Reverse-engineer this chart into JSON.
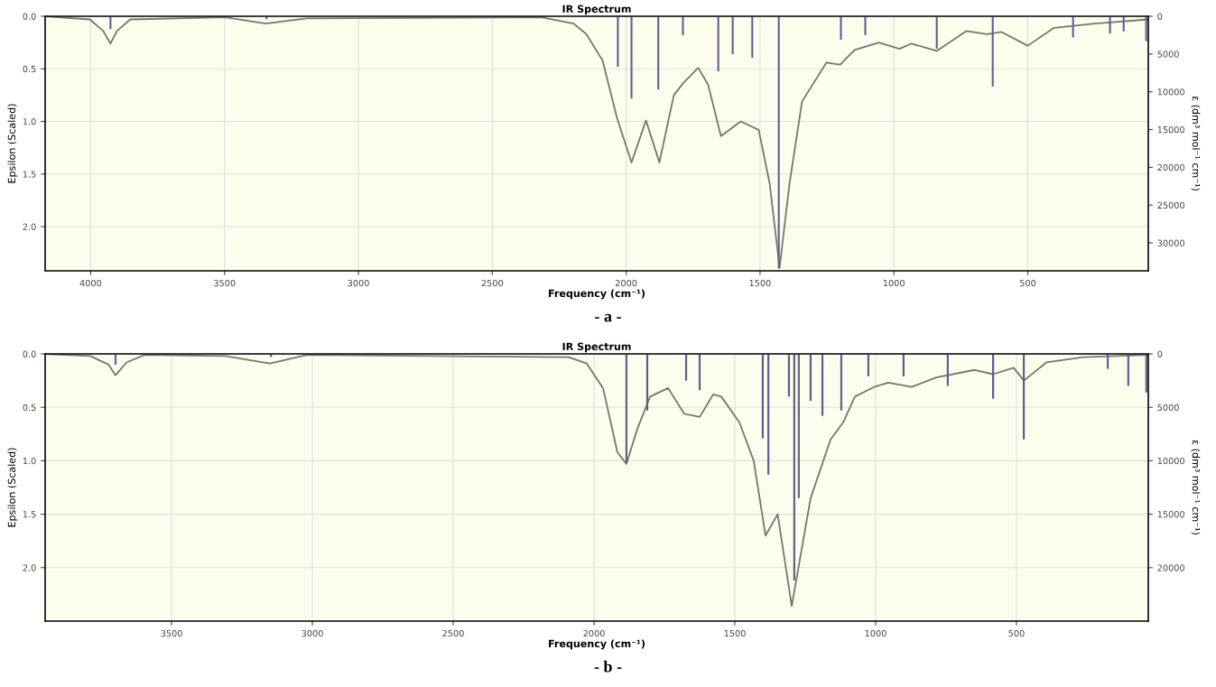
{
  "chart_data": [
    {
      "type": "line",
      "title": "IR Spectrum",
      "xlabel": "Frequency (cm⁻¹)",
      "ylabel": "Epsilon (Scaled)",
      "y2label": "ε (dm³ mol⁻¹ cm⁻¹)",
      "xlim": [
        4170,
        50
      ],
      "xticks": [
        4000,
        3500,
        3000,
        2500,
        2000,
        1500,
        1000,
        500
      ],
      "ylim": [
        2.42,
        0
      ],
      "yticks": [
        {
          "value": 0,
          "label": "0.0"
        },
        {
          "value": 0.5,
          "label": "0.5"
        },
        {
          "value": 1,
          "label": "1.0"
        },
        {
          "value": 1.5,
          "label": "1.5"
        },
        {
          "value": 2,
          "label": "2.0"
        }
      ],
      "y2lim": [
        33700,
        0
      ],
      "y2ticks": [
        0,
        5000,
        10000,
        15000,
        20000,
        25000,
        30000
      ],
      "grid": true,
      "annotations": [
        "- a -"
      ],
      "series": [
        {
          "color": "#77776a",
          "x": [
            4170,
            4003,
            3953,
            3926,
            3902,
            3852,
            3498,
            3346,
            3194,
            2317,
            2196,
            2149,
            2088,
            2034,
            1980,
            1926,
            1876,
            1822,
            1785,
            1731,
            1694,
            1646,
            1572,
            1505,
            1464,
            1427,
            1390,
            1343,
            1252,
            1201,
            1147,
            1056,
            979,
            935,
            840,
            729,
            652,
            598,
            500,
            402,
            250,
            51
          ],
          "values": [
            0.0,
            0.03,
            0.14,
            0.26,
            0.14,
            0.03,
            0.01,
            0.07,
            0.02,
            0.01,
            0.07,
            0.17,
            0.42,
            0.97,
            1.39,
            0.99,
            1.39,
            0.75,
            0.63,
            0.49,
            0.65,
            1.14,
            1.0,
            1.08,
            1.59,
            2.39,
            1.59,
            0.81,
            0.44,
            0.46,
            0.32,
            0.25,
            0.31,
            0.26,
            0.33,
            0.14,
            0.17,
            0.15,
            0.28,
            0.11,
            0.07,
            0.03
          ]
        },
        {
          "type": "bar",
          "axis": "y2",
          "color": "#5c6088",
          "x": [
            3926,
            3343,
            2031,
            1980,
            1880,
            1788,
            1656,
            1602,
            1529,
            1430,
            1198,
            1107,
            840,
            631,
            331,
            193,
            142,
            58
          ],
          "values": [
            1700,
            400,
            6700,
            10900,
            9700,
            2500,
            7300,
            5000,
            5500,
            33400,
            3100,
            2500,
            4300,
            9300,
            2800,
            2300,
            2000,
            3300
          ]
        }
      ]
    },
    {
      "type": "line",
      "title": "IR Spectrum",
      "xlabel": "Frequency (cm⁻¹)",
      "ylabel": "Epsilon (Scaled)",
      "y2label": "ε (dm³ mol⁻¹ cm⁻¹)",
      "xlim": [
        3949,
        32
      ],
      "xticks": [
        3500,
        3000,
        2500,
        2000,
        1500,
        1000,
        500
      ],
      "ylim": [
        2.5,
        0
      ],
      "yticks": [
        {
          "value": 0,
          "label": "0.0"
        },
        {
          "value": 0.5,
          "label": "0.5"
        },
        {
          "value": 1,
          "label": "1.0"
        },
        {
          "value": 1.5,
          "label": "1.5"
        },
        {
          "value": 2,
          "label": "2.0"
        }
      ],
      "y2lim": [
        25000,
        0
      ],
      "y2ticks": [
        0,
        5000,
        10000,
        15000,
        20000
      ],
      "grid": true,
      "annotations": [
        "- b -"
      ],
      "series": [
        {
          "color": "#77776a",
          "x": [
            3949,
            3788,
            3724,
            3699,
            3660,
            3596,
            3308,
            3151,
            3019,
            2090,
            2026,
            1968,
            1917,
            1885,
            1846,
            1801,
            1737,
            1680,
            1625,
            1577,
            1548,
            1484,
            1433,
            1391,
            1348,
            1298,
            1231,
            1160,
            1115,
            1074,
            1006,
            955,
            872,
            785,
            648,
            583,
            510,
            474,
            394,
            263,
            32
          ],
          "values": [
            0.0,
            0.02,
            0.1,
            0.2,
            0.08,
            0.01,
            0.02,
            0.09,
            0.01,
            0.03,
            0.09,
            0.32,
            0.92,
            1.03,
            0.7,
            0.4,
            0.32,
            0.56,
            0.59,
            0.38,
            0.4,
            0.64,
            1.0,
            1.7,
            1.5,
            2.36,
            1.35,
            0.8,
            0.64,
            0.4,
            0.31,
            0.27,
            0.31,
            0.22,
            0.15,
            0.19,
            0.13,
            0.25,
            0.08,
            0.03,
            0.01
          ]
        },
        {
          "type": "bar",
          "axis": "y2",
          "color": "#5c6088",
          "x": [
            3699,
            3147,
            1885,
            1811,
            1673,
            1625,
            1401,
            1381,
            1308,
            1289,
            1273,
            1231,
            1189,
            1122,
            1026,
            901,
            744,
            583,
            474,
            176,
            103,
            39
          ],
          "values": [
            1000,
            300,
            10200,
            5300,
            2500,
            3400,
            7900,
            11300,
            4000,
            21200,
            13500,
            4400,
            5800,
            5300,
            2100,
            2100,
            3000,
            4200,
            8000,
            1400,
            3000,
            3600
          ]
        }
      ]
    }
  ]
}
